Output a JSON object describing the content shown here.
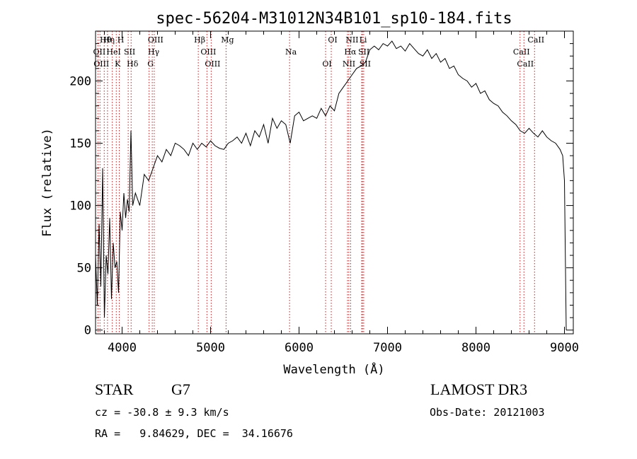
{
  "chart_data": {
    "type": "line",
    "title": "spec-56204-M31012N34B101_sp10-184.fits",
    "xlabel": "Wavelength (Å)",
    "ylabel": "Flux (relative)",
    "xlim": [
      3700,
      9100
    ],
    "ylim": [
      -3,
      240
    ],
    "xticks": [
      4000,
      5000,
      6000,
      7000,
      8000,
      9000
    ],
    "yticks": [
      0,
      50,
      100,
      150,
      200
    ],
    "grid": false,
    "series": [
      {
        "name": "flux",
        "x": [
          3700,
          3720,
          3740,
          3760,
          3780,
          3800,
          3820,
          3840,
          3860,
          3880,
          3900,
          3920,
          3940,
          3960,
          3980,
          4000,
          4020,
          4040,
          4060,
          4080,
          4100,
          4120,
          4150,
          4200,
          4250,
          4300,
          4350,
          4400,
          4450,
          4500,
          4550,
          4600,
          4650,
          4700,
          4750,
          4800,
          4850,
          4900,
          4950,
          5000,
          5050,
          5100,
          5150,
          5200,
          5250,
          5300,
          5350,
          5400,
          5450,
          5500,
          5550,
          5600,
          5650,
          5700,
          5750,
          5800,
          5850,
          5900,
          5950,
          6000,
          6050,
          6100,
          6150,
          6200,
          6250,
          6300,
          6350,
          6400,
          6450,
          6500,
          6550,
          6600,
          6650,
          6700,
          6750,
          6800,
          6850,
          6900,
          6950,
          7000,
          7050,
          7100,
          7150,
          7200,
          7250,
          7300,
          7350,
          7400,
          7450,
          7500,
          7550,
          7600,
          7650,
          7700,
          7750,
          7800,
          7850,
          7900,
          7950,
          8000,
          8050,
          8100,
          8150,
          8200,
          8250,
          8300,
          8350,
          8400,
          8450,
          8500,
          8550,
          8600,
          8650,
          8700,
          8750,
          8800,
          8850,
          8900,
          8950,
          8980,
          9000,
          9020
        ],
        "y": [
          60,
          20,
          85,
          35,
          130,
          10,
          60,
          45,
          90,
          25,
          70,
          50,
          55,
          30,
          95,
          80,
          110,
          90,
          105,
          95,
          160,
          100,
          110,
          100,
          125,
          120,
          130,
          140,
          135,
          145,
          140,
          150,
          148,
          145,
          140,
          150,
          145,
          150,
          147,
          152,
          148,
          146,
          145,
          150,
          152,
          155,
          150,
          158,
          148,
          160,
          155,
          165,
          150,
          170,
          162,
          168,
          165,
          150,
          172,
          175,
          168,
          170,
          172,
          170,
          178,
          172,
          180,
          176,
          190,
          195,
          200,
          205,
          210,
          212,
          215,
          225,
          228,
          225,
          230,
          228,
          232,
          226,
          228,
          224,
          230,
          226,
          222,
          220,
          225,
          218,
          222,
          215,
          218,
          210,
          212,
          205,
          202,
          200,
          195,
          198,
          190,
          192,
          185,
          182,
          180,
          175,
          172,
          168,
          165,
          160,
          158,
          162,
          158,
          155,
          160,
          155,
          152,
          150,
          145,
          140,
          120,
          0
        ]
      }
    ],
    "lines": [
      {
        "name": "Hθ",
        "wavelength": 3798
      },
      {
        "name": "OII",
        "wavelength": 3727
      },
      {
        "name": "OIII",
        "wavelength": 3750
      },
      {
        "name": "Hη",
        "wavelength": 3835
      },
      {
        "name": "HeI",
        "wavelength": 3889
      },
      {
        "name": "K",
        "wavelength": 3934
      },
      {
        "name": "H",
        "wavelength": 3968
      },
      {
        "name": "SII",
        "wavelength": 4069
      },
      {
        "name": "Hδ",
        "wavelength": 4102
      },
      {
        "name": "OIII",
        "wavelength": 4363
      },
      {
        "name": "Hγ",
        "wavelength": 4341
      },
      {
        "name": "G",
        "wavelength": 4305
      },
      {
        "name": "Hβ",
        "wavelength": 4861
      },
      {
        "name": "OIII",
        "wavelength": 4959
      },
      {
        "name": "OIII",
        "wavelength": 5007
      },
      {
        "name": "Mg",
        "wavelength": 5175
      },
      {
        "name": "Na",
        "wavelength": 5893
      },
      {
        "name": "OI",
        "wavelength": 6300
      },
      {
        "name": "OI",
        "wavelength": 6364
      },
      {
        "name": "Hα",
        "wavelength": 6563
      },
      {
        "name": "NII",
        "wavelength": 6548
      },
      {
        "name": "NII",
        "wavelength": 6583
      },
      {
        "name": "SII",
        "wavelength": 6717
      },
      {
        "name": "SII",
        "wavelength": 6731
      },
      {
        "name": "Li",
        "wavelength": 6708
      },
      {
        "name": "CaII",
        "wavelength": 8498
      },
      {
        "name": "CaII",
        "wavelength": 8542
      },
      {
        "name": "CaII",
        "wavelength": 8662
      }
    ]
  },
  "info": {
    "object_class": "STAR",
    "subclass": "G7",
    "survey": "LAMOST DR3",
    "cz": "cz = -30.8 ± 9.3 km/s",
    "obs_date": "Obs-Date: 20121003",
    "coords": "RA =   9.84629, DEC =  34.16676"
  },
  "colors": {
    "line_marker": "#b22222",
    "spectrum": "#000000"
  }
}
